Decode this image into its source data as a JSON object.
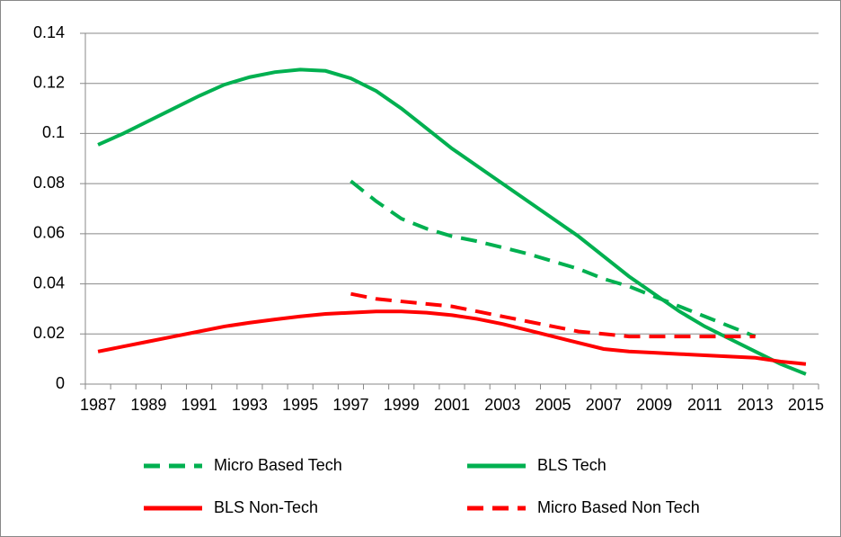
{
  "chart_data": {
    "type": "line",
    "categories": [
      "1987",
      null,
      "1989",
      null,
      "1991",
      null,
      "1993",
      null,
      "1995",
      null,
      "1997",
      null,
      "1999",
      null,
      "2001",
      null,
      "2003",
      null,
      "2005",
      null,
      "2007",
      null,
      "2009",
      null,
      "2011",
      null,
      "2013",
      null,
      "2015"
    ],
    "ylim": [
      0,
      0.14
    ],
    "yticks": [
      0,
      0.02,
      0.04,
      0.06,
      0.08,
      0.1,
      0.12,
      0.14
    ],
    "grid": true,
    "legend": "bottom",
    "series": [
      {
        "name": "Micro Based Tech",
        "color": "#00b050",
        "dash": true,
        "values": [
          null,
          null,
          null,
          null,
          null,
          null,
          null,
          null,
          null,
          null,
          0.081,
          0.073,
          0.066,
          0.062,
          0.059,
          0.057,
          0.0545,
          0.052,
          0.049,
          0.046,
          0.042,
          0.039,
          0.035,
          0.031,
          0.027,
          0.023,
          0.019,
          null,
          null
        ]
      },
      {
        "name": "BLS Tech",
        "color": "#00b050",
        "dash": false,
        "values": [
          0.0955,
          0.1,
          0.105,
          0.11,
          0.115,
          0.1195,
          0.1225,
          0.1245,
          0.1255,
          0.125,
          0.122,
          0.117,
          0.11,
          0.102,
          0.094,
          0.087,
          0.08,
          0.073,
          0.066,
          0.059,
          0.051,
          0.043,
          0.036,
          0.029,
          0.023,
          0.018,
          0.013,
          0.008,
          0.004
        ]
      },
      {
        "name": "BLS Non-Tech",
        "color": "#ff0000",
        "dash": false,
        "values": [
          0.013,
          0.015,
          0.017,
          0.019,
          0.021,
          0.023,
          0.0245,
          0.0258,
          0.027,
          0.028,
          0.0285,
          0.029,
          0.029,
          0.0285,
          0.0275,
          0.026,
          0.024,
          0.0215,
          0.019,
          0.0165,
          0.014,
          0.013,
          0.0125,
          0.012,
          0.0115,
          0.011,
          0.0105,
          0.009,
          0.008
        ]
      },
      {
        "name": "Micro Based Non Tech",
        "color": "#ff0000",
        "dash": true,
        "values": [
          null,
          null,
          null,
          null,
          null,
          null,
          null,
          null,
          null,
          null,
          0.036,
          0.034,
          0.033,
          0.032,
          0.031,
          0.029,
          0.027,
          0.025,
          0.023,
          0.021,
          0.02,
          0.019,
          0.019,
          0.019,
          0.019,
          0.019,
          0.019,
          null,
          null
        ]
      }
    ]
  }
}
